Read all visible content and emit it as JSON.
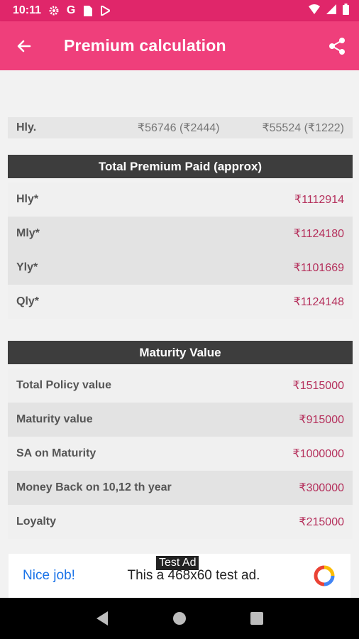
{
  "status_bar": {
    "time": "10:11",
    "icons_left": [
      "gear-icon",
      "google-icon",
      "sim-card-icon",
      "play-store-icon"
    ],
    "icons_right": [
      "wifi-icon",
      "signal-icon",
      "battery-icon"
    ]
  },
  "app_bar": {
    "title": "Premium calculation",
    "back_icon": "arrow-back-icon",
    "share_icon": "share-icon",
    "color": "#ef3f7b"
  },
  "partial_row": {
    "label": "Hly.",
    "value1": "₹56746 (₹2444)",
    "value2": "₹55524 (₹1222)"
  },
  "total_premium": {
    "header": "Total Premium Paid (approx)",
    "rows": [
      {
        "label": "Hly*",
        "value": "₹1112914"
      },
      {
        "label": "Mly*",
        "value": "₹1124180"
      },
      {
        "label": "Yly*",
        "value": "₹1101669"
      },
      {
        "label": "Qly*",
        "value": "₹1124148"
      }
    ]
  },
  "maturity": {
    "header": "Maturity Value",
    "rows": [
      {
        "label": "Total Policy value",
        "value": "₹1515000"
      },
      {
        "label": "Maturity value",
        "value": "₹915000"
      },
      {
        "label": "SA on Maturity",
        "value": "₹1000000"
      },
      {
        "label": "Money Back on 10,12 th year",
        "value": "₹300000"
      },
      {
        "label": "Loyalty",
        "value": "₹215000"
      }
    ]
  },
  "ad": {
    "tag": "Test Ad",
    "nice": "Nice job!",
    "text": "This a 468x60 test ad."
  },
  "nav_bar": {
    "icons": [
      "back-triangle-icon",
      "home-circle-icon",
      "recents-square-icon"
    ]
  }
}
